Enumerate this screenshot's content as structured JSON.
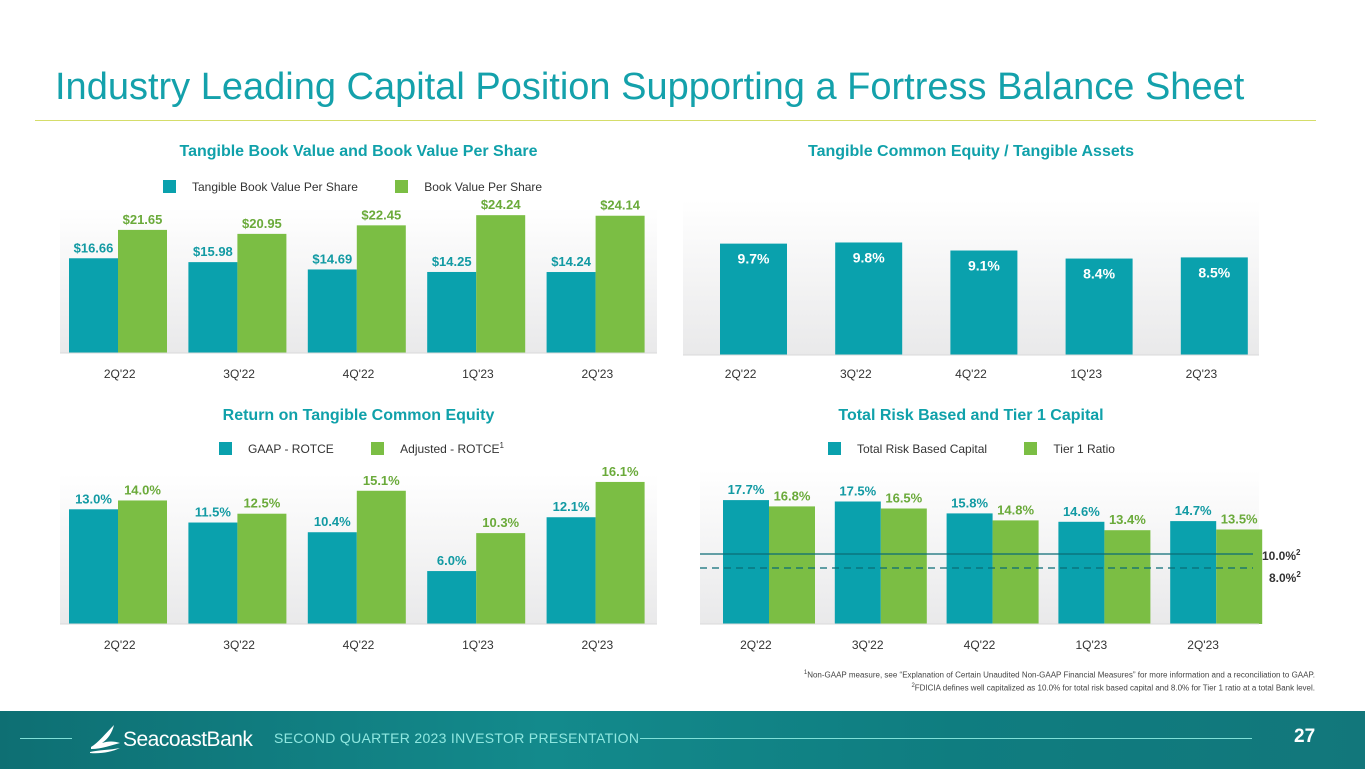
{
  "title": "Industry Leading Capital Position Supporting a Fortress Balance Sheet",
  "colors": {
    "teal": "#0aa1ad",
    "green": "#7bbe44",
    "title": "#14a1ab"
  },
  "chart_data": [
    {
      "id": "tbv",
      "type": "bar",
      "title": "Tangible Book Value and Book Value Per Share",
      "categories": [
        "2Q'22",
        "3Q'22",
        "4Q'22",
        "1Q'23",
        "2Q'23"
      ],
      "series": [
        {
          "name": "Tangible Book Value Per Share",
          "values": [
            16.66,
            15.98,
            14.69,
            14.25,
            14.24
          ],
          "labels": [
            "$16.66",
            "$15.98",
            "$14.69",
            "$14.25",
            "$14.24"
          ]
        },
        {
          "name": "Book Value Per Share",
          "values": [
            21.65,
            20.95,
            22.45,
            24.24,
            24.14
          ],
          "labels": [
            "$21.65",
            "$20.95",
            "$22.45",
            "$24.24",
            "$24.14"
          ]
        }
      ],
      "ylim": [
        0,
        25.5
      ]
    },
    {
      "id": "tce",
      "type": "bar",
      "title": "Tangible Common Equity / Tangible Assets",
      "categories": [
        "2Q'22",
        "3Q'22",
        "4Q'22",
        "1Q'23",
        "2Q'23"
      ],
      "series": [
        {
          "name": "Tangible Common Equity / Tangible Assets",
          "values": [
            9.7,
            9.8,
            9.1,
            8.4,
            8.5
          ],
          "labels": [
            "9.7%",
            "9.8%",
            "9.1%",
            "8.4%",
            "8.5%"
          ]
        }
      ],
      "ylim": [
        0,
        13.5
      ]
    },
    {
      "id": "rotce",
      "type": "bar",
      "title": "Return on Tangible Common Equity",
      "categories": [
        "2Q'22",
        "3Q'22",
        "4Q'22",
        "1Q'23",
        "2Q'23"
      ],
      "series": [
        {
          "name": "GAAP - ROTCE",
          "values": [
            13.0,
            11.5,
            10.4,
            6.0,
            12.1
          ],
          "labels": [
            "13.0%",
            "11.5%",
            "10.4%",
            "6.0%",
            "12.1%"
          ]
        },
        {
          "name": "Adjusted - ROTCE",
          "values": [
            14.0,
            12.5,
            15.1,
            10.3,
            16.1
          ],
          "labels": [
            "14.0%",
            "12.5%",
            "15.1%",
            "10.3%",
            "16.1%"
          ]
        }
      ],
      "ylim": [
        0,
        17
      ]
    },
    {
      "id": "risk",
      "type": "bar",
      "title": "Total Risk Based and Tier 1 Capital",
      "categories": [
        "2Q'22",
        "3Q'22",
        "4Q'22",
        "1Q'23",
        "2Q'23"
      ],
      "series": [
        {
          "name": "Total Risk Based Capital",
          "values": [
            17.7,
            17.5,
            15.8,
            14.6,
            14.7
          ],
          "labels": [
            "17.7%",
            "17.5%",
            "15.8%",
            "14.6%",
            "14.7%"
          ]
        },
        {
          "name": "Tier 1 Ratio",
          "values": [
            16.8,
            16.5,
            14.8,
            13.4,
            13.5
          ],
          "labels": [
            "16.8%",
            "16.5%",
            "14.8%",
            "13.4%",
            "13.5%"
          ]
        }
      ],
      "ylim": [
        0,
        22
      ],
      "reference_lines": [
        {
          "value": 10.0,
          "label": "10.0%",
          "style": "solid"
        },
        {
          "value": 8.0,
          "label": "8.0%",
          "style": "dashed"
        }
      ]
    }
  ],
  "legends": {
    "tbv": [
      "Tangible Book Value Per Share",
      "Book Value Per Share"
    ],
    "rotce": [
      "GAAP - ROTCE",
      "Adjusted - ROTCE"
    ],
    "risk": [
      "Total Risk Based Capital",
      "Tier 1 Ratio"
    ]
  },
  "superscripts": {
    "one": "1",
    "two": "2"
  },
  "footnotes": [
    "Non-GAAP measure, see “Explanation of Certain Unaudited Non-GAAP Financial Measures” for more information and a reconciliation to GAAP.",
    "FDICIA defines well capitalized as 10.0% for total risk based capital and 8.0% for Tier 1 ratio at a total Bank level."
  ],
  "footer": {
    "brand": "SeacoastBank",
    "presentation": "SECOND QUARTER 2023 INVESTOR PRESENTATION",
    "page": "27"
  }
}
